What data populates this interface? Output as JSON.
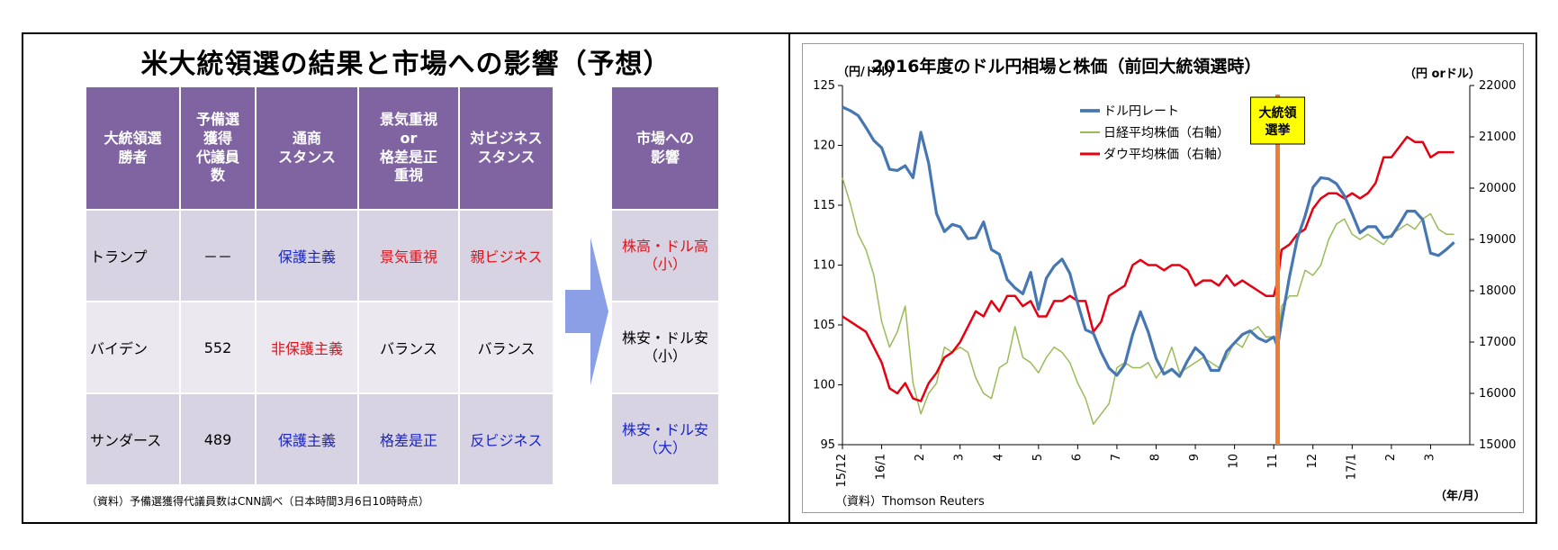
{
  "left_panel": {
    "title": "米大統領選の結果と市場への影響（予想）",
    "headers": [
      "大統領選\n勝者",
      "予備選\n獲得\n代議員\n数",
      "通商\nスタンス",
      "景気重視\nor\n格差是正\n重視",
      "対ビジネス\nスタンス"
    ],
    "rows": [
      {
        "cells": [
          "トランプ",
          "－－",
          "保護主義",
          "景気重視",
          "親ビジネス"
        ],
        "colors": [
          "#000000",
          "#000000",
          "#1a25c8",
          "#e0121b",
          "#e0121b"
        ]
      },
      {
        "cells": [
          "バイデン",
          "552",
          "非保護主義",
          "バランス",
          "バランス"
        ],
        "colors": [
          "#000000",
          "#000000",
          "#e0121b",
          "#000000",
          "#000000"
        ]
      },
      {
        "cells": [
          "サンダース",
          "489",
          "保護主義",
          "格差是正",
          "反ビジネス"
        ],
        "colors": [
          "#000000",
          "#000000",
          "#1a25c8",
          "#1a25c8",
          "#1a25c8"
        ]
      }
    ],
    "market_header": "市場への\n影響",
    "market": [
      {
        "text": "株高・ドル高\n（小）",
        "color": "#e0121b"
      },
      {
        "text": "株安・ドル安\n（小）",
        "color": "#000000"
      },
      {
        "text": "株安・ドル安\n（大）",
        "color": "#1a25c8"
      }
    ],
    "note": "（資料）予備選獲得代議員数はCNN調べ（日本時間3月6日10時時点）",
    "colors": {
      "header_bg": "#8064a2",
      "row_dark": "#d8d3e2",
      "row_light": "#ebe8f0",
      "arrow": "#8b9fe6"
    }
  },
  "chart_data": {
    "type": "line",
    "title": "2016年度のドル円相場と株価（前回大統領選時）",
    "left_unit": "（円/ドル）",
    "right_unit": "（円 orドル）",
    "xlabel": "（年/月）",
    "source": "（資料）Thomson Reuters",
    "annotation": "大統領\n選挙",
    "annotation_x": 11.1,
    "y_left": {
      "min": 95,
      "max": 125,
      "ticks": [
        95,
        100,
        105,
        110,
        115,
        120,
        125
      ]
    },
    "y_right": {
      "min": 15000,
      "max": 22000,
      "ticks": [
        15000,
        16000,
        17000,
        18000,
        19000,
        20000,
        21000,
        22000
      ]
    },
    "x_ticks": [
      {
        "label": "15/12",
        "x": 0
      },
      {
        "label": "16/1",
        "x": 1
      },
      {
        "label": "2",
        "x": 2
      },
      {
        "label": "3",
        "x": 3
      },
      {
        "label": "4",
        "x": 4
      },
      {
        "label": "5",
        "x": 5
      },
      {
        "label": "6",
        "x": 6
      },
      {
        "label": "7",
        "x": 7
      },
      {
        "label": "8",
        "x": 8
      },
      {
        "label": "9",
        "x": 9
      },
      {
        "label": "10",
        "x": 10
      },
      {
        "label": "11",
        "x": 11
      },
      {
        "label": "12",
        "x": 12
      },
      {
        "label": "17/1",
        "x": 13
      },
      {
        "label": "2",
        "x": 14
      },
      {
        "label": "3",
        "x": 15
      }
    ],
    "x_range": [
      0,
      16
    ],
    "grid": false,
    "legend_position": "top-center",
    "series": [
      {
        "name": "ドル円レート",
        "axis": "left",
        "color": "#4677b3",
        "width": 3.2,
        "points": [
          [
            0,
            123.2
          ],
          [
            0.2,
            122.9
          ],
          [
            0.4,
            122.5
          ],
          [
            0.6,
            121.5
          ],
          [
            0.8,
            120.4
          ],
          [
            1.0,
            119.8
          ],
          [
            1.2,
            118.0
          ],
          [
            1.4,
            117.9
          ],
          [
            1.6,
            118.3
          ],
          [
            1.8,
            117.3
          ],
          [
            2.0,
            121.1
          ],
          [
            2.2,
            118.5
          ],
          [
            2.4,
            114.3
          ],
          [
            2.6,
            112.8
          ],
          [
            2.8,
            113.4
          ],
          [
            3.0,
            113.2
          ],
          [
            3.2,
            112.2
          ],
          [
            3.4,
            112.3
          ],
          [
            3.6,
            113.6
          ],
          [
            3.8,
            111.3
          ],
          [
            4.0,
            110.9
          ],
          [
            4.2,
            108.8
          ],
          [
            4.4,
            108.1
          ],
          [
            4.6,
            107.6
          ],
          [
            4.8,
            109.4
          ],
          [
            5.0,
            106.3
          ],
          [
            5.2,
            108.9
          ],
          [
            5.4,
            109.9
          ],
          [
            5.6,
            110.5
          ],
          [
            5.8,
            109.3
          ],
          [
            6.0,
            106.8
          ],
          [
            6.2,
            104.6
          ],
          [
            6.4,
            104.3
          ],
          [
            6.6,
            102.7
          ],
          [
            6.8,
            101.4
          ],
          [
            7.0,
            100.8
          ],
          [
            7.2,
            101.7
          ],
          [
            7.4,
            104.2
          ],
          [
            7.6,
            106.1
          ],
          [
            7.8,
            104.4
          ],
          [
            8.0,
            102.2
          ],
          [
            8.2,
            100.9
          ],
          [
            8.4,
            101.3
          ],
          [
            8.6,
            100.7
          ],
          [
            8.8,
            102.0
          ],
          [
            9.0,
            103.1
          ],
          [
            9.2,
            102.5
          ],
          [
            9.4,
            101.2
          ],
          [
            9.6,
            101.2
          ],
          [
            9.8,
            102.8
          ],
          [
            10.0,
            103.5
          ],
          [
            10.2,
            104.2
          ],
          [
            10.4,
            104.5
          ],
          [
            10.6,
            103.9
          ],
          [
            10.8,
            103.6
          ],
          [
            11.0,
            104.0
          ],
          [
            11.1,
            103.2
          ],
          [
            11.2,
            105.3
          ],
          [
            11.4,
            109.0
          ],
          [
            11.6,
            112.2
          ],
          [
            11.8,
            114.1
          ],
          [
            12.0,
            116.5
          ],
          [
            12.2,
            117.3
          ],
          [
            12.4,
            117.2
          ],
          [
            12.6,
            116.8
          ],
          [
            12.8,
            115.8
          ],
          [
            13.0,
            114.3
          ],
          [
            13.2,
            112.7
          ],
          [
            13.4,
            113.2
          ],
          [
            13.6,
            113.2
          ],
          [
            13.8,
            112.3
          ],
          [
            14.0,
            112.4
          ],
          [
            14.2,
            113.4
          ],
          [
            14.4,
            114.5
          ],
          [
            14.6,
            114.5
          ],
          [
            14.8,
            113.8
          ],
          [
            15.0,
            111.0
          ],
          [
            15.2,
            110.8
          ],
          [
            15.4,
            111.3
          ],
          [
            15.6,
            111.9
          ]
        ]
      },
      {
        "name": "日経平均株価（右軸）",
        "axis": "right",
        "color": "#9bbb59",
        "width": 1.5,
        "points": [
          [
            0,
            20200
          ],
          [
            0.2,
            19700
          ],
          [
            0.4,
            19100
          ],
          [
            0.6,
            18800
          ],
          [
            0.8,
            18300
          ],
          [
            1.0,
            17400
          ],
          [
            1.2,
            16900
          ],
          [
            1.4,
            17200
          ],
          [
            1.6,
            17700
          ],
          [
            1.8,
            16200
          ],
          [
            2.0,
            15600
          ],
          [
            2.2,
            16000
          ],
          [
            2.4,
            16200
          ],
          [
            2.6,
            16900
          ],
          [
            2.8,
            16800
          ],
          [
            3.0,
            16900
          ],
          [
            3.2,
            16800
          ],
          [
            3.4,
            16300
          ],
          [
            3.6,
            16000
          ],
          [
            3.8,
            15900
          ],
          [
            4.0,
            16500
          ],
          [
            4.2,
            16600
          ],
          [
            4.4,
            17300
          ],
          [
            4.6,
            16700
          ],
          [
            4.8,
            16600
          ],
          [
            5.0,
            16400
          ],
          [
            5.2,
            16700
          ],
          [
            5.4,
            16900
          ],
          [
            5.6,
            16800
          ],
          [
            5.8,
            16600
          ],
          [
            6.0,
            16200
          ],
          [
            6.2,
            15900
          ],
          [
            6.4,
            15400
          ],
          [
            6.6,
            15600
          ],
          [
            6.8,
            15800
          ],
          [
            7.0,
            16500
          ],
          [
            7.2,
            16600
          ],
          [
            7.4,
            16500
          ],
          [
            7.6,
            16500
          ],
          [
            7.8,
            16600
          ],
          [
            8.0,
            16300
          ],
          [
            8.2,
            16500
          ],
          [
            8.4,
            16900
          ],
          [
            8.6,
            16400
          ],
          [
            8.8,
            16500
          ],
          [
            9.0,
            16600
          ],
          [
            9.2,
            16700
          ],
          [
            9.4,
            16600
          ],
          [
            9.6,
            16500
          ],
          [
            9.8,
            16700
          ],
          [
            10.0,
            17000
          ],
          [
            10.2,
            16900
          ],
          [
            10.4,
            17200
          ],
          [
            10.6,
            17300
          ],
          [
            10.8,
            17100
          ],
          [
            11.0,
            17100
          ],
          [
            11.1,
            16900
          ],
          [
            11.2,
            17700
          ],
          [
            11.4,
            17900
          ],
          [
            11.6,
            17900
          ],
          [
            11.8,
            18400
          ],
          [
            12.0,
            18300
          ],
          [
            12.2,
            18500
          ],
          [
            12.4,
            19000
          ],
          [
            12.6,
            19300
          ],
          [
            12.8,
            19400
          ],
          [
            13.0,
            19100
          ],
          [
            13.2,
            19000
          ],
          [
            13.4,
            19100
          ],
          [
            13.6,
            19000
          ],
          [
            13.8,
            18900
          ],
          [
            14.0,
            19100
          ],
          [
            14.2,
            19200
          ],
          [
            14.4,
            19300
          ],
          [
            14.6,
            19200
          ],
          [
            14.8,
            19400
          ],
          [
            15.0,
            19500
          ],
          [
            15.2,
            19200
          ],
          [
            15.4,
            19100
          ],
          [
            15.6,
            19100
          ]
        ]
      },
      {
        "name": "ダウ平均株価（右軸）",
        "axis": "right",
        "color": "#e60012",
        "width": 2.5,
        "points": [
          [
            0,
            17500
          ],
          [
            0.2,
            17400
          ],
          [
            0.4,
            17300
          ],
          [
            0.6,
            17200
          ],
          [
            0.8,
            16900
          ],
          [
            1.0,
            16600
          ],
          [
            1.2,
            16100
          ],
          [
            1.4,
            16000
          ],
          [
            1.6,
            16200
          ],
          [
            1.8,
            15900
          ],
          [
            2.0,
            15850
          ],
          [
            2.2,
            16200
          ],
          [
            2.4,
            16400
          ],
          [
            2.6,
            16700
          ],
          [
            2.8,
            16800
          ],
          [
            3.0,
            17000
          ],
          [
            3.2,
            17300
          ],
          [
            3.4,
            17600
          ],
          [
            3.6,
            17500
          ],
          [
            3.8,
            17800
          ],
          [
            4.0,
            17600
          ],
          [
            4.2,
            17900
          ],
          [
            4.4,
            17900
          ],
          [
            4.6,
            17700
          ],
          [
            4.8,
            17800
          ],
          [
            5.0,
            17500
          ],
          [
            5.2,
            17500
          ],
          [
            5.4,
            17800
          ],
          [
            5.6,
            17800
          ],
          [
            5.8,
            17900
          ],
          [
            6.0,
            17800
          ],
          [
            6.2,
            17800
          ],
          [
            6.4,
            17200
          ],
          [
            6.6,
            17400
          ],
          [
            6.8,
            17900
          ],
          [
            7.0,
            18000
          ],
          [
            7.2,
            18100
          ],
          [
            7.4,
            18500
          ],
          [
            7.6,
            18600
          ],
          [
            7.8,
            18500
          ],
          [
            8.0,
            18500
          ],
          [
            8.2,
            18400
          ],
          [
            8.4,
            18500
          ],
          [
            8.6,
            18500
          ],
          [
            8.8,
            18400
          ],
          [
            9.0,
            18100
          ],
          [
            9.2,
            18200
          ],
          [
            9.4,
            18200
          ],
          [
            9.6,
            18100
          ],
          [
            9.8,
            18300
          ],
          [
            10.0,
            18100
          ],
          [
            10.2,
            18200
          ],
          [
            10.4,
            18100
          ],
          [
            10.6,
            18000
          ],
          [
            10.8,
            17900
          ],
          [
            11.0,
            17900
          ],
          [
            11.1,
            18200
          ],
          [
            11.2,
            18800
          ],
          [
            11.4,
            18900
          ],
          [
            11.6,
            19100
          ],
          [
            11.8,
            19200
          ],
          [
            12.0,
            19600
          ],
          [
            12.2,
            19800
          ],
          [
            12.4,
            19900
          ],
          [
            12.6,
            19900
          ],
          [
            12.8,
            19800
          ],
          [
            13.0,
            19900
          ],
          [
            13.2,
            19800
          ],
          [
            13.4,
            19900
          ],
          [
            13.6,
            20100
          ],
          [
            13.8,
            20600
          ],
          [
            14.0,
            20600
          ],
          [
            14.2,
            20800
          ],
          [
            14.4,
            21000
          ],
          [
            14.6,
            20900
          ],
          [
            14.8,
            20900
          ],
          [
            15.0,
            20600
          ],
          [
            15.2,
            20700
          ],
          [
            15.4,
            20700
          ],
          [
            15.6,
            20700
          ]
        ]
      }
    ]
  }
}
